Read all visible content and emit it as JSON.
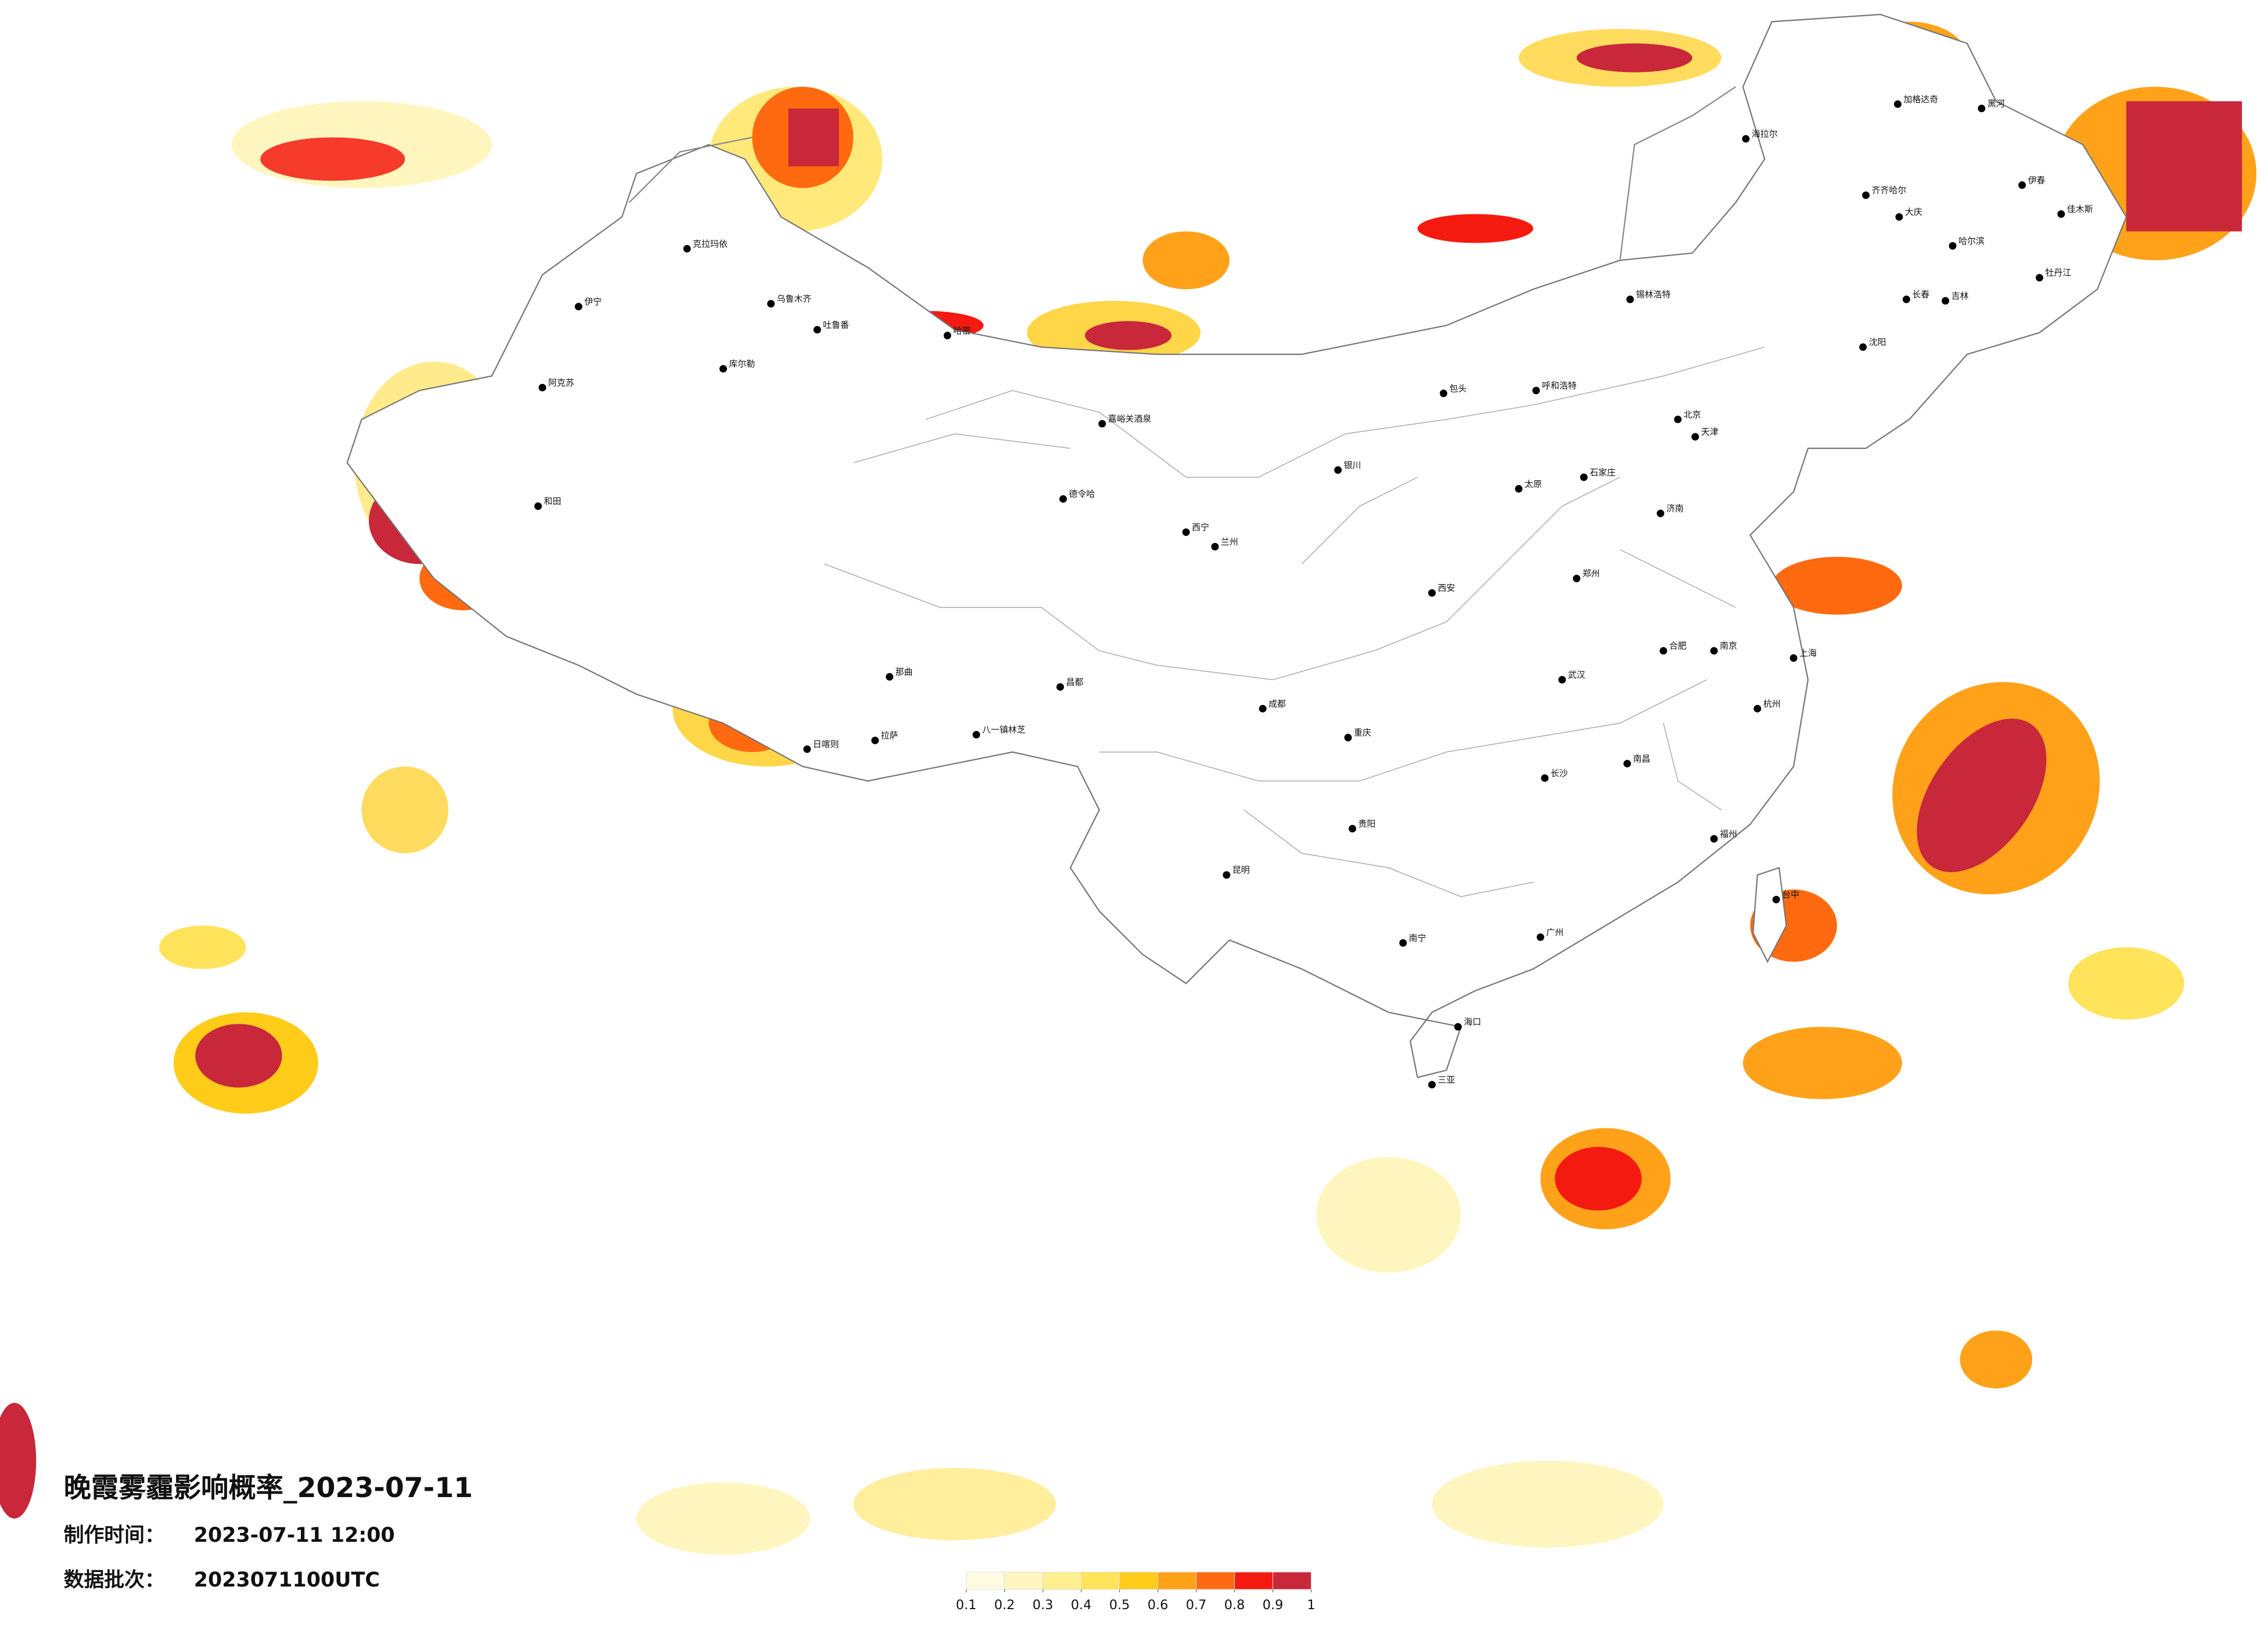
{
  "title": "晚霞雾霾影响概率_2023-07-11",
  "production_time": {
    "label": "制作时间：",
    "value": "2023-07-11 12:00"
  },
  "data_batch": {
    "label": "数据批次：",
    "value": "2023071100UTC"
  },
  "legend": {
    "ticks": [
      0.1,
      0.2,
      0.3,
      0.4,
      0.5,
      0.6,
      0.7,
      0.8,
      0.9,
      1
    ],
    "colors": [
      "#fffbe3",
      "#fff6bf",
      "#ffef8f",
      "#ffe35a",
      "#ffcc1a",
      "#ffa21a",
      "#ff6a10",
      "#f51a10",
      "#c8283a"
    ]
  },
  "cities": [
    "伊宁",
    "克拉玛依",
    "阿克苏",
    "和田",
    "哈密",
    "库尔勒",
    "吐鲁番",
    "乌鲁木齐",
    "嘉峪关酒泉",
    "德令哈",
    "拉萨",
    "日喀则",
    "八一镇林芝",
    "那曲",
    "昌都",
    "海拉尔",
    "加格达奇",
    "黑河",
    "齐齐哈尔",
    "大庆",
    "哈尔滨",
    "伊春",
    "佳木斯",
    "牡丹江",
    "长春",
    "吉林",
    "沈阳",
    "锡林浩特",
    "呼和浩特",
    "包头",
    "北京",
    "天津",
    "石家庄",
    "太原",
    "济南",
    "郑州",
    "西安",
    "兰州",
    "西宁",
    "银川",
    "成都",
    "重庆",
    "贵阳",
    "昆明",
    "南宁",
    "海口",
    "三亚",
    "广州",
    "福州",
    "台中",
    "杭州",
    "上海",
    "南京",
    "合肥",
    "武汉",
    "长沙",
    "南昌"
  ]
}
